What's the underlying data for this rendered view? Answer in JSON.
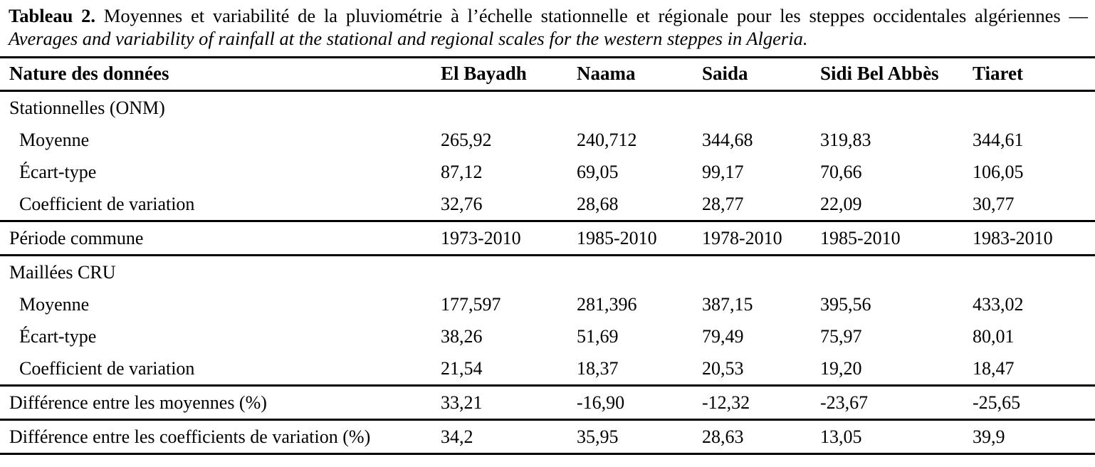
{
  "caption": {
    "label": "Tableau 2.",
    "fr": " Moyennes et variabilité de la pluviométrie à l’échelle stationnelle et régionale pour les steppes occidentales algériennes — ",
    "en": "Averages and variability of rainfall at the stational and regional scales for the western steppes in Algeria."
  },
  "table": {
    "header": {
      "label_col": "Nature des données",
      "stations": [
        "El Bayadh",
        "Naama",
        "Saida",
        "Sidi Bel Abbès",
        "Tiaret"
      ]
    },
    "rows": [
      {
        "label": "Stationnelles (ONM)",
        "values": [
          "",
          "",
          "",
          "",
          ""
        ]
      },
      {
        "label": "Moyenne",
        "values": [
          "265,92",
          "240,712",
          "344,68",
          "319,83",
          "344,61"
        ]
      },
      {
        "label": "Écart-type",
        "values": [
          "87,12",
          "69,05",
          "99,17",
          "70,66",
          "106,05"
        ]
      },
      {
        "label": "Coefficient de variation",
        "values": [
          "32,76",
          "28,68",
          "28,77",
          "22,09",
          "30,77"
        ]
      },
      {
        "label": "Période commune",
        "values": [
          "1973-2010",
          "1985-2010",
          "1978-2010",
          "1985-2010",
          "1983-2010"
        ]
      },
      {
        "label": "Maillées CRU",
        "values": [
          "",
          "",
          "",
          "",
          ""
        ]
      },
      {
        "label": "Moyenne",
        "values": [
          "177,597",
          "281,396",
          "387,15",
          "395,56",
          "433,02"
        ]
      },
      {
        "label": "Écart-type",
        "values": [
          "38,26",
          "51,69",
          "79,49",
          "75,97",
          "80,01"
        ]
      },
      {
        "label": "Coefficient de variation",
        "values": [
          "21,54",
          "18,37",
          "20,53",
          "19,20",
          "18,47"
        ]
      },
      {
        "label": "Différence entre les moyennes (%)",
        "values": [
          "33,21",
          "-16,90",
          "-12,32",
          "-23,67",
          "-25,65"
        ]
      },
      {
        "label": "Différence entre les coefficients de variation (%)",
        "values": [
          "34,2",
          "35,95",
          "28,63",
          "13,05",
          "39,9"
        ]
      }
    ]
  }
}
